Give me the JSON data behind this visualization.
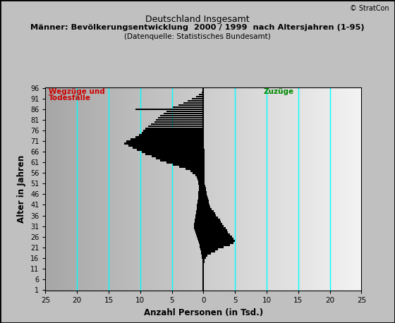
{
  "title_line1": "Deutschland Insgesamt",
  "title_line2": "Männer: Bevölkerungsentwicklung  2000 / 1999  nach Altersjahren (1-95)",
  "title_line3": "(Datenquelle: Statistisches Bundesamt)",
  "xlabel": "Anzahl Personen (in Tsd.)",
  "ylabel": "Alter in Jahren",
  "copyright": "© StratCon",
  "label_wegzuege": "Wegzüge und",
  "label_todesfaelle": "Todesfälle",
  "label_zuzuege": "Zuzüge",
  "xlim": [
    -25,
    25
  ],
  "ytick_positions": [
    1,
    6,
    11,
    16,
    21,
    26,
    31,
    36,
    41,
    46,
    51,
    56,
    61,
    66,
    71,
    76,
    81,
    86,
    91,
    96
  ],
  "xtick_positions": [
    -25,
    -20,
    -15,
    -10,
    -5,
    0,
    5,
    10,
    15,
    20,
    25
  ],
  "xtick_labels": [
    "25",
    "20",
    "15",
    "10",
    "5",
    "0",
    "5",
    "10",
    "15",
    "20",
    "25"
  ],
  "cyan_lines_x": [
    -20,
    -15,
    -10,
    -5,
    5,
    10,
    15,
    20
  ],
  "bar_color": "#000000",
  "title_color": "#000000",
  "wegzuege_color": "#cc0000",
  "zuzuege_color": "#008800",
  "fig_facecolor": "#c0c0c0",
  "ages": [
    1,
    2,
    3,
    4,
    5,
    6,
    7,
    8,
    9,
    10,
    11,
    12,
    13,
    14,
    15,
    16,
    17,
    18,
    19,
    20,
    21,
    22,
    23,
    24,
    25,
    26,
    27,
    28,
    29,
    30,
    31,
    32,
    33,
    34,
    35,
    36,
    37,
    38,
    39,
    40,
    41,
    42,
    43,
    44,
    45,
    46,
    47,
    48,
    49,
    50,
    51,
    52,
    53,
    54,
    55,
    56,
    57,
    58,
    59,
    60,
    61,
    62,
    63,
    64,
    65,
    66,
    67,
    68,
    69,
    70,
    71,
    72,
    73,
    74,
    75,
    76,
    77,
    78,
    79,
    80,
    81,
    82,
    83,
    84,
    85,
    86,
    87,
    88,
    89,
    90,
    91,
    92,
    93,
    94,
    95
  ],
  "left_values": [
    0.05,
    0.05,
    0.05,
    0.05,
    0.05,
    0.1,
    0.1,
    0.1,
    0.1,
    0.1,
    0.15,
    0.15,
    0.15,
    0.2,
    0.2,
    0.25,
    0.3,
    0.35,
    0.4,
    0.45,
    0.55,
    0.65,
    0.75,
    0.85,
    0.95,
    1.05,
    1.15,
    1.25,
    1.35,
    1.45,
    1.45,
    1.45,
    1.4,
    1.35,
    1.3,
    1.25,
    1.2,
    1.15,
    1.1,
    1.05,
    1.0,
    0.95,
    0.9,
    0.85,
    0.85,
    0.8,
    0.8,
    0.75,
    0.75,
    0.75,
    0.8,
    0.85,
    0.95,
    1.1,
    1.3,
    1.7,
    2.1,
    2.8,
    3.8,
    4.8,
    5.9,
    6.8,
    7.5,
    8.2,
    9.2,
    9.8,
    10.5,
    11.2,
    11.9,
    12.5,
    12.2,
    11.5,
    10.8,
    10.2,
    9.8,
    9.5,
    9.2,
    8.8,
    8.3,
    7.8,
    7.5,
    7.2,
    6.8,
    6.3,
    5.8,
    10.8,
    4.8,
    4.0,
    3.2,
    2.5,
    1.8,
    1.2,
    0.7,
    0.3,
    0.1
  ],
  "right_values": [
    0.02,
    0.02,
    0.02,
    0.02,
    0.02,
    0.05,
    0.05,
    0.05,
    0.08,
    0.08,
    0.1,
    0.1,
    0.1,
    0.15,
    0.2,
    0.35,
    0.6,
    1.2,
    1.8,
    2.3,
    3.2,
    4.2,
    4.8,
    5.0,
    4.8,
    4.5,
    4.2,
    3.9,
    3.7,
    3.5,
    3.2,
    3.0,
    2.8,
    2.6,
    2.3,
    2.0,
    1.8,
    1.6,
    1.3,
    1.1,
    1.0,
    0.9,
    0.8,
    0.7,
    0.6,
    0.55,
    0.5,
    0.4,
    0.35,
    0.25,
    0.2,
    0.2,
    0.2,
    0.2,
    0.2,
    0.2,
    0.15,
    0.15,
    0.15,
    0.15,
    0.15,
    0.15,
    0.15,
    0.15,
    0.15,
    0.15,
    0.15,
    0.1,
    0.1,
    0.1,
    0.1,
    0.1,
    0.1,
    0.1,
    0.1,
    0.1,
    0.1,
    0.1,
    0.1,
    0.1,
    0.1,
    0.1,
    0.1,
    0.1,
    0.08,
    0.08,
    0.06,
    0.05,
    0.04,
    0.03,
    0.02,
    0.02,
    0.01,
    0.01,
    0.005
  ]
}
